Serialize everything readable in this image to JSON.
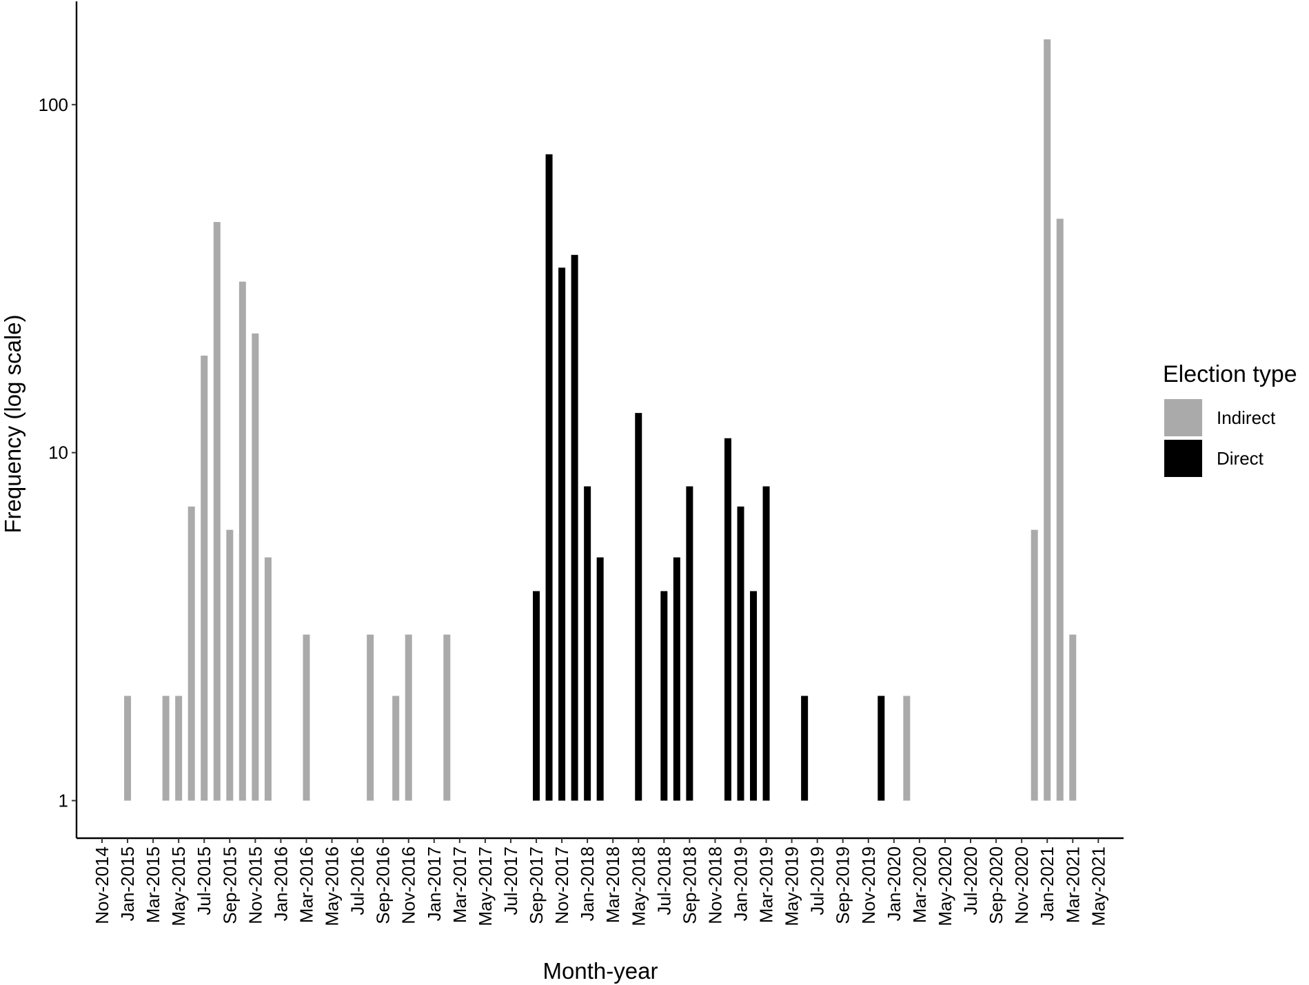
{
  "chart_data": {
    "type": "bar",
    "x_label": "Month-year",
    "y_label": "Frequency (log scale)",
    "categories": [
      "Nov-2014",
      null,
      "Jan-2015",
      null,
      "Mar-2015",
      null,
      "May-2015",
      null,
      "Jul-2015",
      null,
      "Sep-2015",
      null,
      "Nov-2015",
      null,
      "Jan-2016",
      null,
      "Mar-2016",
      null,
      "May-2016",
      null,
      "Jul-2016",
      null,
      "Sep-2016",
      null,
      "Nov-2016",
      null,
      "Jan-2017",
      null,
      "Mar-2017",
      null,
      "May-2017",
      null,
      "Jul-2017",
      null,
      "Sep-2017",
      null,
      "Nov-2017",
      null,
      "Jan-2018",
      null,
      "Mar-2018",
      null,
      "May-2018",
      null,
      "Jul-2018",
      null,
      "Sep-2018",
      null,
      "Nov-2018",
      null,
      "Jan-2019",
      null,
      "Mar-2019",
      null,
      "May-2019",
      null,
      "Jul-2019",
      null,
      "Sep-2019",
      null,
      "Nov-2019",
      null,
      "Jan-2020",
      null,
      "Mar-2020",
      null,
      "May-2020",
      null,
      "Jul-2020",
      null,
      "Sep-2020",
      null,
      "Nov-2020",
      null,
      "Jan-2021",
      null,
      "Mar-2021",
      null,
      "May-2021"
    ],
    "series": [
      {
        "name": "Indirect",
        "color": "#aaaaaa",
        "values": [
          null,
          null,
          2,
          null,
          null,
          2,
          2,
          7,
          19,
          46,
          6,
          31,
          22,
          5,
          null,
          null,
          3,
          null,
          null,
          null,
          null,
          3,
          null,
          2,
          3,
          null,
          null,
          3,
          null,
          null,
          null,
          null,
          null,
          null,
          null,
          null,
          null,
          null,
          null,
          null,
          null,
          null,
          null,
          null,
          null,
          null,
          null,
          null,
          null,
          null,
          null,
          null,
          null,
          null,
          null,
          null,
          null,
          null,
          null,
          null,
          null,
          null,
          null,
          2,
          null,
          null,
          null,
          null,
          null,
          null,
          null,
          null,
          null,
          6,
          154,
          47,
          3,
          null,
          null
        ]
      },
      {
        "name": "Direct",
        "color": "#000000",
        "values": [
          null,
          null,
          null,
          null,
          null,
          null,
          null,
          null,
          null,
          null,
          null,
          null,
          null,
          null,
          null,
          null,
          null,
          null,
          null,
          null,
          null,
          null,
          null,
          null,
          null,
          null,
          null,
          null,
          null,
          null,
          null,
          null,
          null,
          null,
          4,
          72,
          34,
          37,
          8,
          5,
          null,
          null,
          13,
          null,
          4,
          5,
          8,
          null,
          null,
          11,
          7,
          4,
          8,
          null,
          null,
          2,
          null,
          null,
          null,
          null,
          null,
          2,
          null,
          null,
          null,
          null,
          null,
          null,
          null,
          null,
          null,
          null,
          null,
          null,
          null,
          null,
          null,
          null,
          null
        ]
      }
    ],
    "legend_title": "Election type",
    "legend_position": "right",
    "log_scale": true,
    "ylim": [
      0.78,
      198
    ],
    "yticks": [
      1,
      10,
      100
    ],
    "bar_base": 1,
    "grid": false
  }
}
